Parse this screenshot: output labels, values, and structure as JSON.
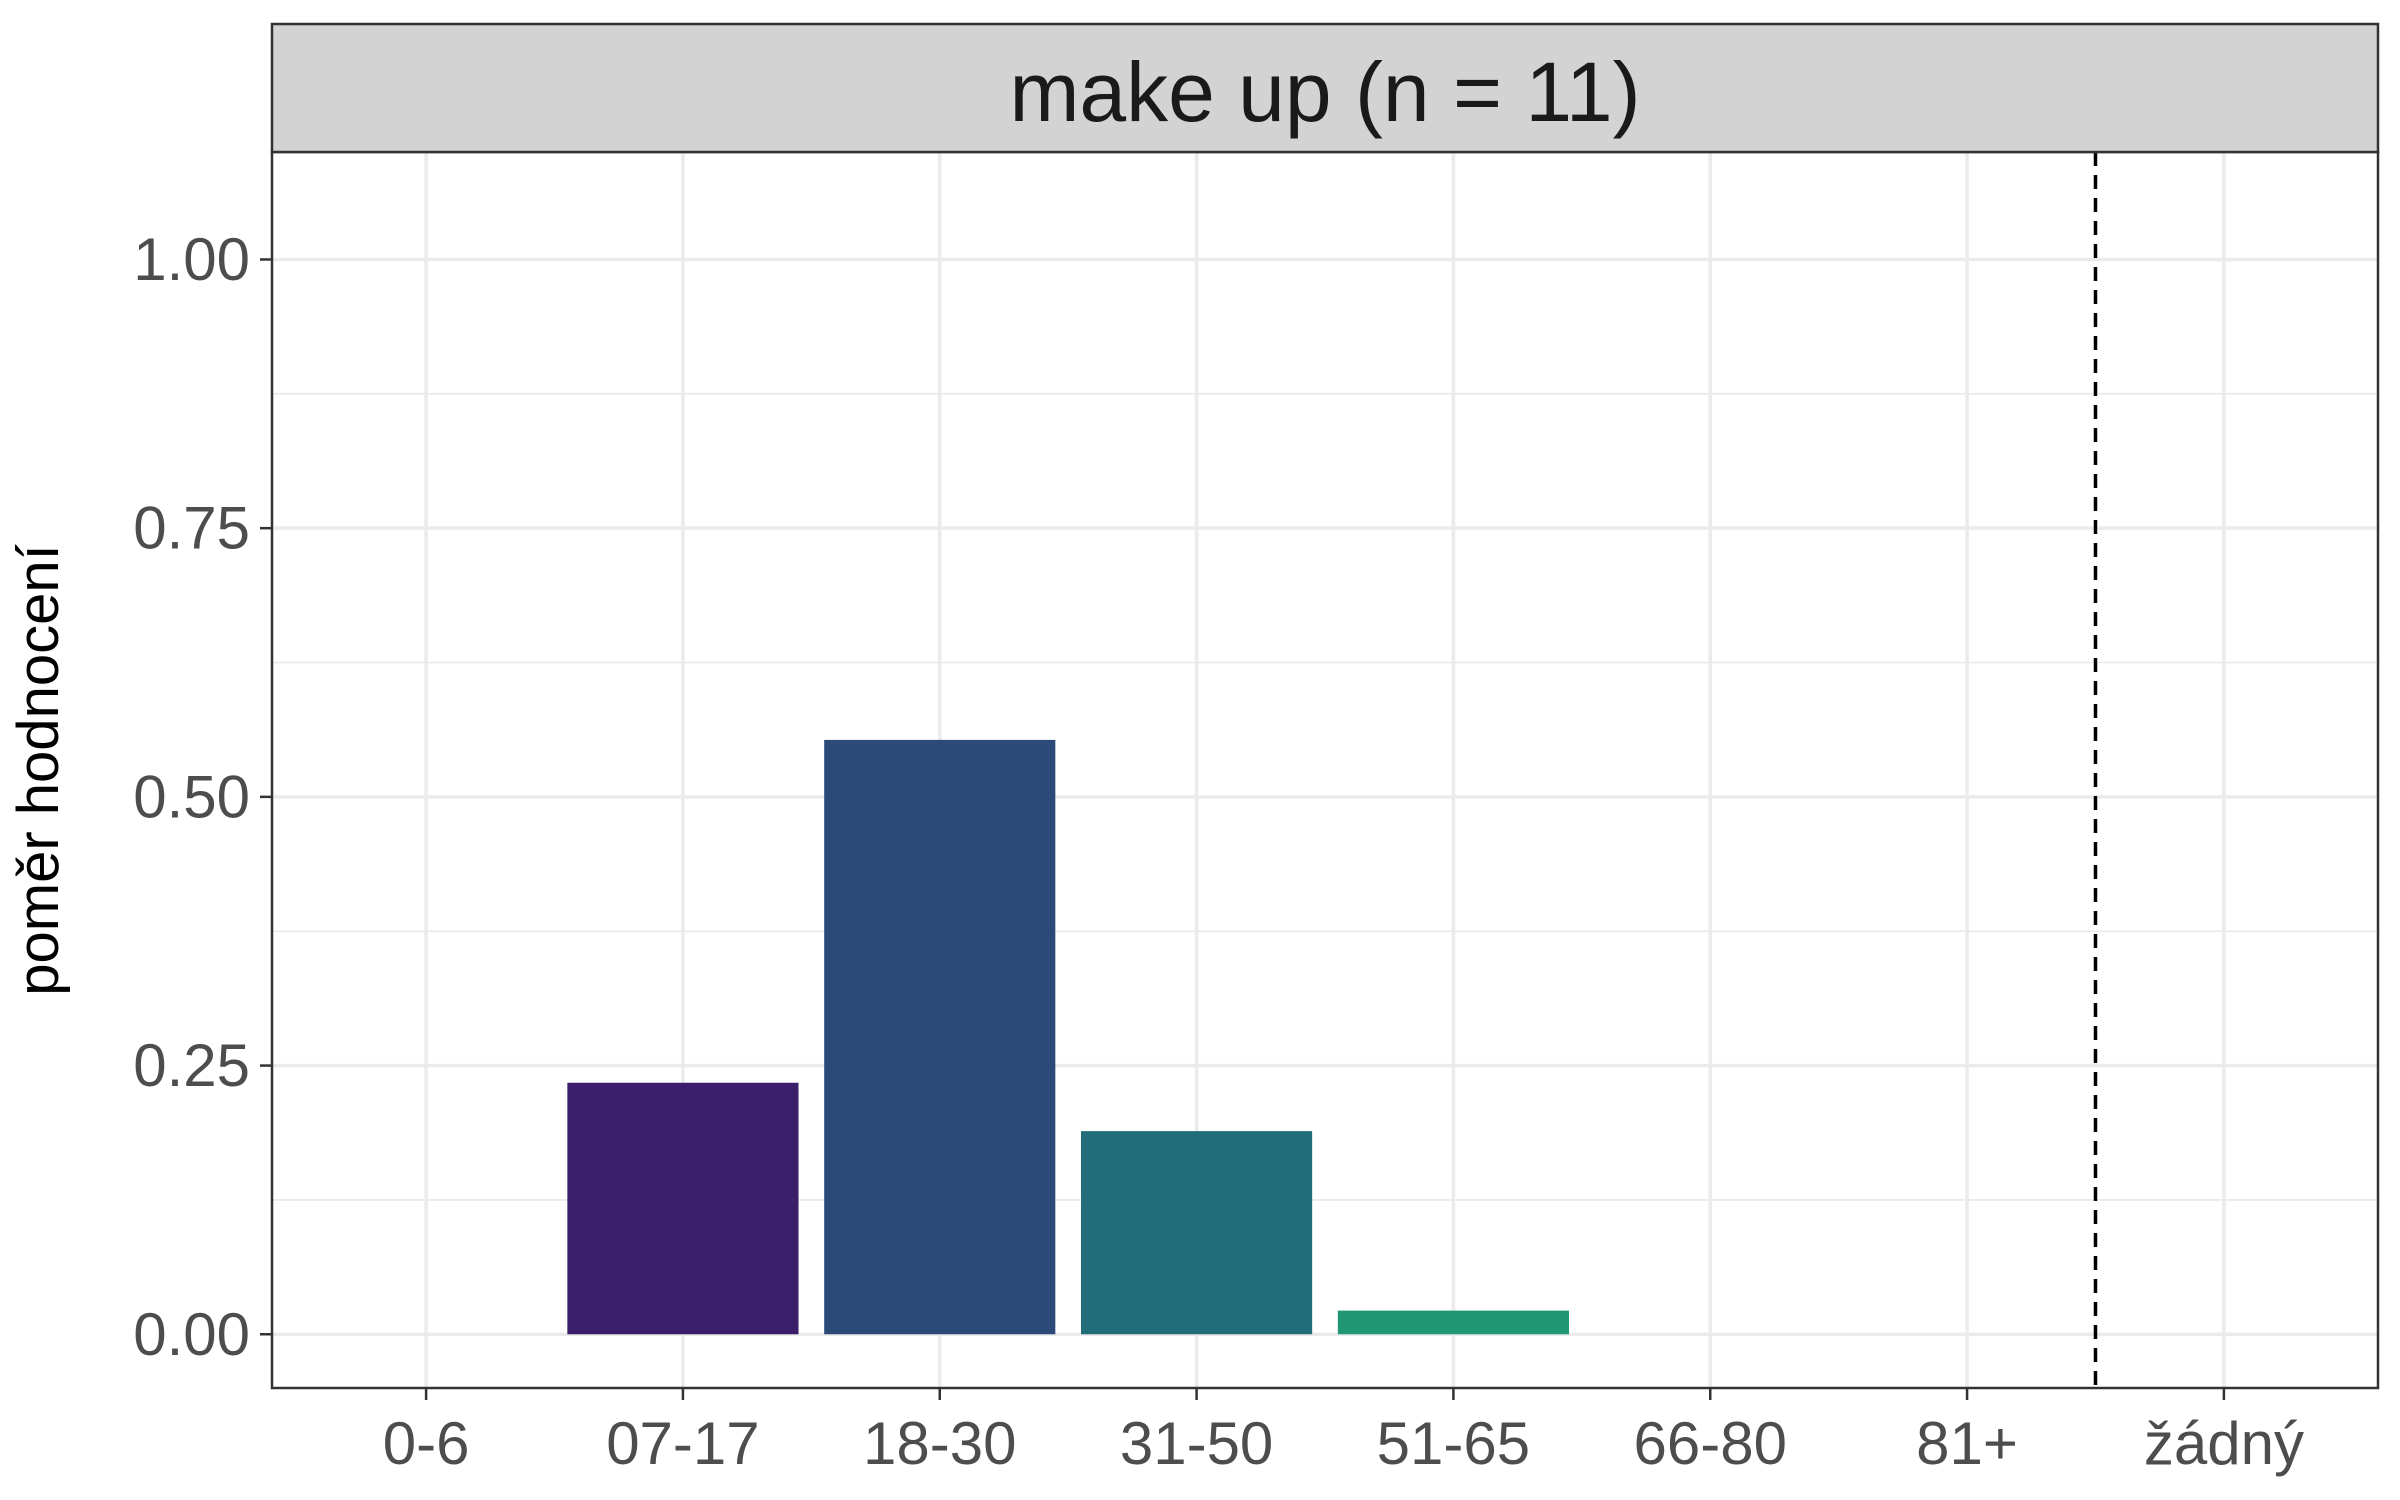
{
  "chart_data": {
    "type": "bar",
    "facet_title": "make up (n = 11)",
    "title": "",
    "xlabel": "",
    "ylabel": "poměr hodnocení",
    "categories": [
      "0-6",
      "07-17",
      "18-30",
      "31-50",
      "51-65",
      "66-80",
      "81+",
      "žádný"
    ],
    "values": [
      0,
      0.234,
      0.553,
      0.189,
      0.022,
      0,
      0,
      0
    ],
    "colors": [
      "#440154",
      "#3B1F6A",
      "#2C4A78",
      "#216D7A",
      "#1E9772",
      "#5DC862",
      "#A8DB34",
      "#FDE725"
    ],
    "ylim": [
      -0.05,
      1.1
    ],
    "yticks": [
      0,
      0.25,
      0.5,
      0.75,
      1.0
    ],
    "ytick_labels": [
      "0.00",
      "0.25",
      "0.50",
      "0.75",
      "1.00"
    ],
    "reference_line": {
      "after_category": "81+",
      "style": "dashed",
      "color": "#000000"
    },
    "grid": true,
    "legend": "none"
  }
}
